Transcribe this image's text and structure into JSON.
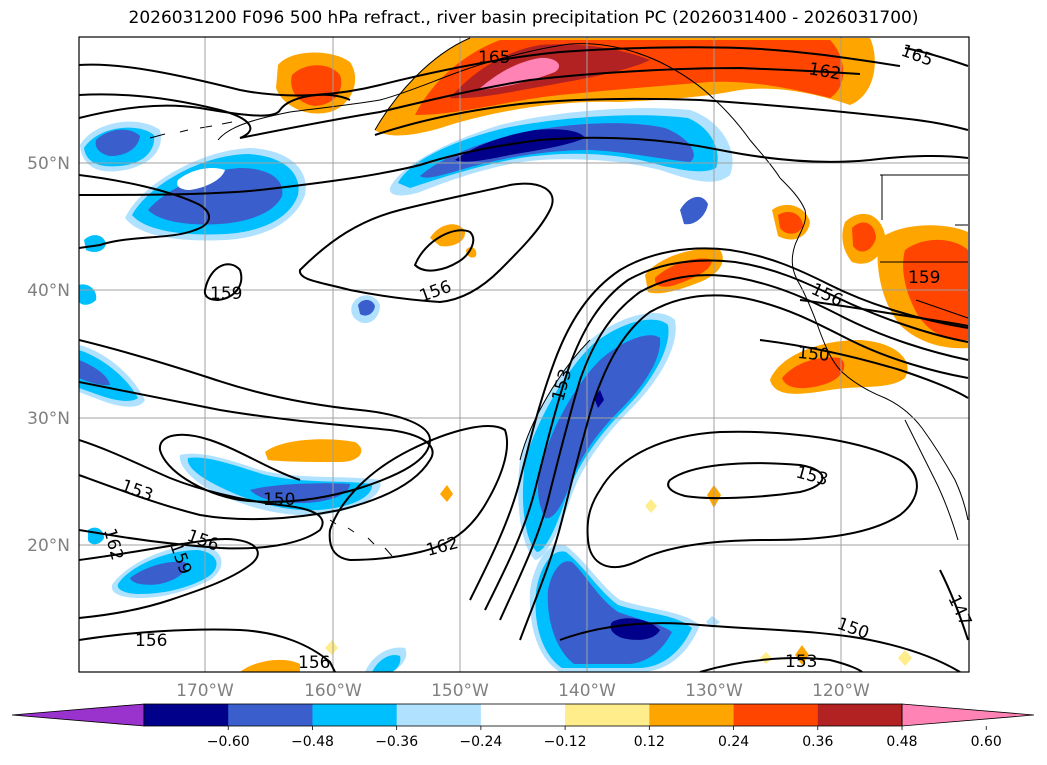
{
  "title": "2026031200 F096 500 hPa refract., river basin precipitation PC (2026031400 - 2026031700)",
  "map": {
    "lat_labels": [
      "50°N",
      "40°N",
      "30°N",
      "20°N"
    ],
    "lon_labels": [
      "170°W",
      "160°W",
      "150°W",
      "140°W",
      "130°W",
      "120°W"
    ],
    "contour_labels": [
      "165",
      "162",
      "165",
      "159",
      "156",
      "156",
      "150",
      "153",
      "153",
      "150",
      "162",
      "159",
      "156",
      "162",
      "156",
      "153",
      "150",
      "153",
      "159",
      "147"
    ]
  },
  "colorbar": {
    "tick_labels": [
      "−0.60",
      "−0.48",
      "−0.36",
      "−0.24",
      "−0.12",
      "0.12",
      "0.24",
      "0.36",
      "0.48",
      "0.60"
    ],
    "colors": [
      "#9a32cd",
      "#00008b",
      "#3a5fcd",
      "#00bfff",
      "#b0e2ff",
      "#ffffff",
      "#ffec8b",
      "#ffa500",
      "#ff4500",
      "#b22222",
      "#ff83b4"
    ]
  },
  "colors": {
    "land_outline": "#000000",
    "grid": "#a0a0a0",
    "contour": "#000000"
  }
}
